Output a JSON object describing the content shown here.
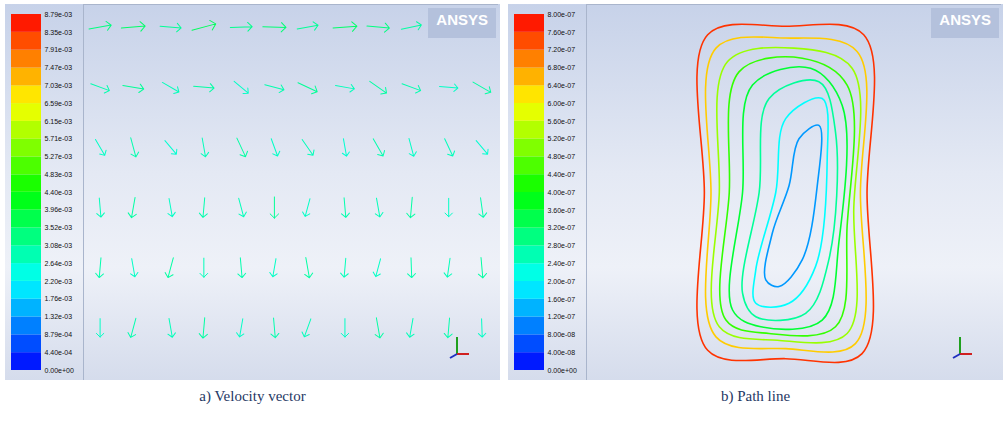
{
  "chart_data": [
    {
      "type": "vector",
      "title": "a) Velocity vector",
      "annotations": [
        "ANSYS"
      ],
      "tick_labels": false,
      "xlim": [
        0,
        1
      ],
      "ylim": [
        0,
        1
      ],
      "colorbar": {
        "range": [
          0,
          0.00879
        ],
        "ticks": [
          {
            "value": 0,
            "label": "0.00e+00"
          },
          {
            "value": 0.00044,
            "label": "4.40e-04"
          },
          {
            "value": 0.000879,
            "label": "8.79e-04"
          },
          {
            "value": 0.00132,
            "label": "1.32e-03"
          },
          {
            "value": 0.00176,
            "label": "1.76e-03"
          },
          {
            "value": 0.0022,
            "label": "2.20e-03"
          },
          {
            "value": 0.00264,
            "label": "2.64e-03"
          },
          {
            "value": 0.00308,
            "label": "3.08e-03"
          },
          {
            "value": 0.00352,
            "label": "3.52e-03"
          },
          {
            "value": 0.00396,
            "label": "3.96e-03"
          },
          {
            "value": 0.0044,
            "label": "4.40e-03"
          },
          {
            "value": 0.00483,
            "label": "4.83e-03"
          },
          {
            "value": 0.00527,
            "label": "5.27e-03"
          },
          {
            "value": 0.00571,
            "label": "5.71e-03"
          },
          {
            "value": 0.00615,
            "label": "6.15e-03"
          },
          {
            "value": 0.00659,
            "label": "6.59e-03"
          },
          {
            "value": 0.00703,
            "label": "7.03e-03"
          },
          {
            "value": 0.00747,
            "label": "7.47e-03"
          },
          {
            "value": 0.00791,
            "label": "7.91e-03"
          },
          {
            "value": 0.00835,
            "label": "8.35e-03"
          },
          {
            "value": 0.00879,
            "label": "8.79e-03"
          }
        ]
      },
      "vectors": {
        "x": [
          0.04,
          0.12,
          0.21,
          0.29,
          0.38,
          0.46,
          0.54,
          0.63,
          0.71,
          0.79,
          0.88,
          0.96
        ],
        "rows": [
          {
            "y": 0.94,
            "angle": [
              80,
              85,
              95,
              75,
              88,
              92,
              80,
              86,
              95,
              78,
              84,
              90
            ],
            "speed": [
              0.0033,
              0.0035,
              0.0031,
              0.0036,
              0.0032,
              0.0034,
              0.0031,
              0.0035,
              0.0033,
              0.003,
              0.0034,
              0.0032
            ]
          },
          {
            "y": 0.78,
            "angle": [
              110,
              100,
              120,
              95,
              130,
              105,
              115,
              100,
              125,
              110,
              95,
              120
            ],
            "speed": [
              0.0029,
              0.0031,
              0.0028,
              0.003,
              0.0027,
              0.0029,
              0.0031,
              0.0028,
              0.003,
              0.0029,
              0.0027,
              0.003
            ]
          },
          {
            "y": 0.62,
            "angle": [
              150,
              165,
              140,
              170,
              155,
              160,
              145,
              170,
              150,
              165,
              155,
              140
            ],
            "speed": [
              0.0027,
              0.0029,
              0.0026,
              0.0028,
              0.003,
              0.0027,
              0.0028,
              0.0026,
              0.0029,
              0.0027,
              0.0028,
              0.0026
            ]
          },
          {
            "y": 0.46,
            "angle": [
              175,
              190,
              170,
              185,
              165,
              180,
              195,
              175,
              170,
              185,
              180,
              172
            ],
            "speed": [
              0.0028,
              0.003,
              0.0027,
              0.0029,
              0.0028,
              0.0031,
              0.0027,
              0.0029,
              0.0028,
              0.003,
              0.0027,
              0.0029
            ]
          },
          {
            "y": 0.3,
            "angle": [
              185,
              170,
              195,
              180,
              175,
              190,
              170,
              185,
              195,
              178,
              188,
              175
            ],
            "speed": [
              0.0029,
              0.0027,
              0.003,
              0.0028,
              0.0029,
              0.0027,
              0.003,
              0.0028,
              0.0027,
              0.0029,
              0.0028,
              0.003
            ]
          },
          {
            "y": 0.14,
            "angle": [
              180,
              195,
              170,
              185,
              190,
              175,
              200,
              180,
              170,
              190,
              185,
              178
            ],
            "speed": [
              0.0027,
              0.0029,
              0.0028,
              0.003,
              0.0027,
              0.0029,
              0.0028,
              0.0027,
              0.003,
              0.0028,
              0.0029,
              0.0027
            ]
          }
        ]
      }
    },
    {
      "type": "pathline",
      "title": "b) Path line",
      "annotations": [
        "ANSYS"
      ],
      "tick_labels": false,
      "xlim": [
        -0.7,
        1.8
      ],
      "ylim": [
        -0.06,
        1.06
      ],
      "colorbar": {
        "range": [
          0,
          8e-07
        ],
        "ticks": [
          {
            "value": 0,
            "label": "0.00e+00"
          },
          {
            "value": 4e-08,
            "label": "4.00e-08"
          },
          {
            "value": 8e-08,
            "label": "8.00e-08"
          },
          {
            "value": 1.2e-07,
            "label": "1.20e-07"
          },
          {
            "value": 1.6e-07,
            "label": "1.60e-07"
          },
          {
            "value": 2e-07,
            "label": "2.00e-07"
          },
          {
            "value": 2.4e-07,
            "label": "2.40e-07"
          },
          {
            "value": 2.8e-07,
            "label": "2.80e-07"
          },
          {
            "value": 3.2e-07,
            "label": "3.20e-07"
          },
          {
            "value": 3.6e-07,
            "label": "3.60e-07"
          },
          {
            "value": 4e-07,
            "label": "4.00e-07"
          },
          {
            "value": 4.4e-07,
            "label": "4.40e-07"
          },
          {
            "value": 4.8e-07,
            "label": "4.80e-07"
          },
          {
            "value": 5.2e-07,
            "label": "5.20e-07"
          },
          {
            "value": 5.6e-07,
            "label": "5.60e-07"
          },
          {
            "value": 6e-07,
            "label": "6.00e-07"
          },
          {
            "value": 6.4e-07,
            "label": "6.40e-07"
          },
          {
            "value": 6.8e-07,
            "label": "6.80e-07"
          },
          {
            "value": 7.2e-07,
            "label": "7.20e-07"
          },
          {
            "value": 7.6e-07,
            "label": "7.60e-07"
          },
          {
            "value": 8e-07,
            "label": "8.00e-07"
          }
        ]
      },
      "pathlines": [
        {
          "value": 7.6e-07,
          "x": [
            0.03,
            0.5,
            0.97,
            0.99,
            0.96,
            0.5,
            0.03,
            0.01
          ],
          "y": [
            0.97,
            0.995,
            0.97,
            0.5,
            0.02,
            0.005,
            0.03,
            0.5
          ]
        },
        {
          "value": 6.4e-07,
          "x": [
            0.08,
            0.5,
            0.93,
            0.95,
            0.92,
            0.5,
            0.08,
            0.05
          ],
          "y": [
            0.93,
            0.96,
            0.92,
            0.5,
            0.05,
            0.035,
            0.07,
            0.5
          ]
        },
        {
          "value": 5.2e-07,
          "x": [
            0.15,
            0.55,
            0.9,
            0.91,
            0.87,
            0.45,
            0.1,
            0.1
          ],
          "y": [
            0.89,
            0.93,
            0.87,
            0.45,
            0.08,
            0.06,
            0.1,
            0.5
          ]
        },
        {
          "value": 4.4e-07,
          "x": [
            0.22,
            0.6,
            0.87,
            0.87,
            0.8,
            0.4,
            0.14,
            0.16
          ],
          "y": [
            0.86,
            0.9,
            0.82,
            0.4,
            0.1,
            0.08,
            0.12,
            0.5
          ]
        },
        {
          "value": 3.6e-07,
          "x": [
            0.3,
            0.65,
            0.84,
            0.82,
            0.72,
            0.35,
            0.18,
            0.24
          ],
          "y": [
            0.82,
            0.87,
            0.76,
            0.35,
            0.12,
            0.1,
            0.15,
            0.5
          ]
        },
        {
          "value": 2.8e-07,
          "x": [
            0.4,
            0.7,
            0.8,
            0.76,
            0.62,
            0.32,
            0.24,
            0.34
          ],
          "y": [
            0.78,
            0.83,
            0.68,
            0.3,
            0.14,
            0.13,
            0.2,
            0.5
          ]
        },
        {
          "value": 2e-07,
          "x": [
            0.5,
            0.72,
            0.75,
            0.68,
            0.52,
            0.32,
            0.32,
            0.44
          ],
          "y": [
            0.72,
            0.78,
            0.6,
            0.28,
            0.17,
            0.17,
            0.27,
            0.5
          ]
        },
        {
          "value": 1.2e-07,
          "x": [
            0.58,
            0.7,
            0.69,
            0.6,
            0.46,
            0.38,
            0.42,
            0.52
          ],
          "y": [
            0.66,
            0.7,
            0.52,
            0.3,
            0.22,
            0.24,
            0.38,
            0.52
          ]
        }
      ]
    }
  ]
}
